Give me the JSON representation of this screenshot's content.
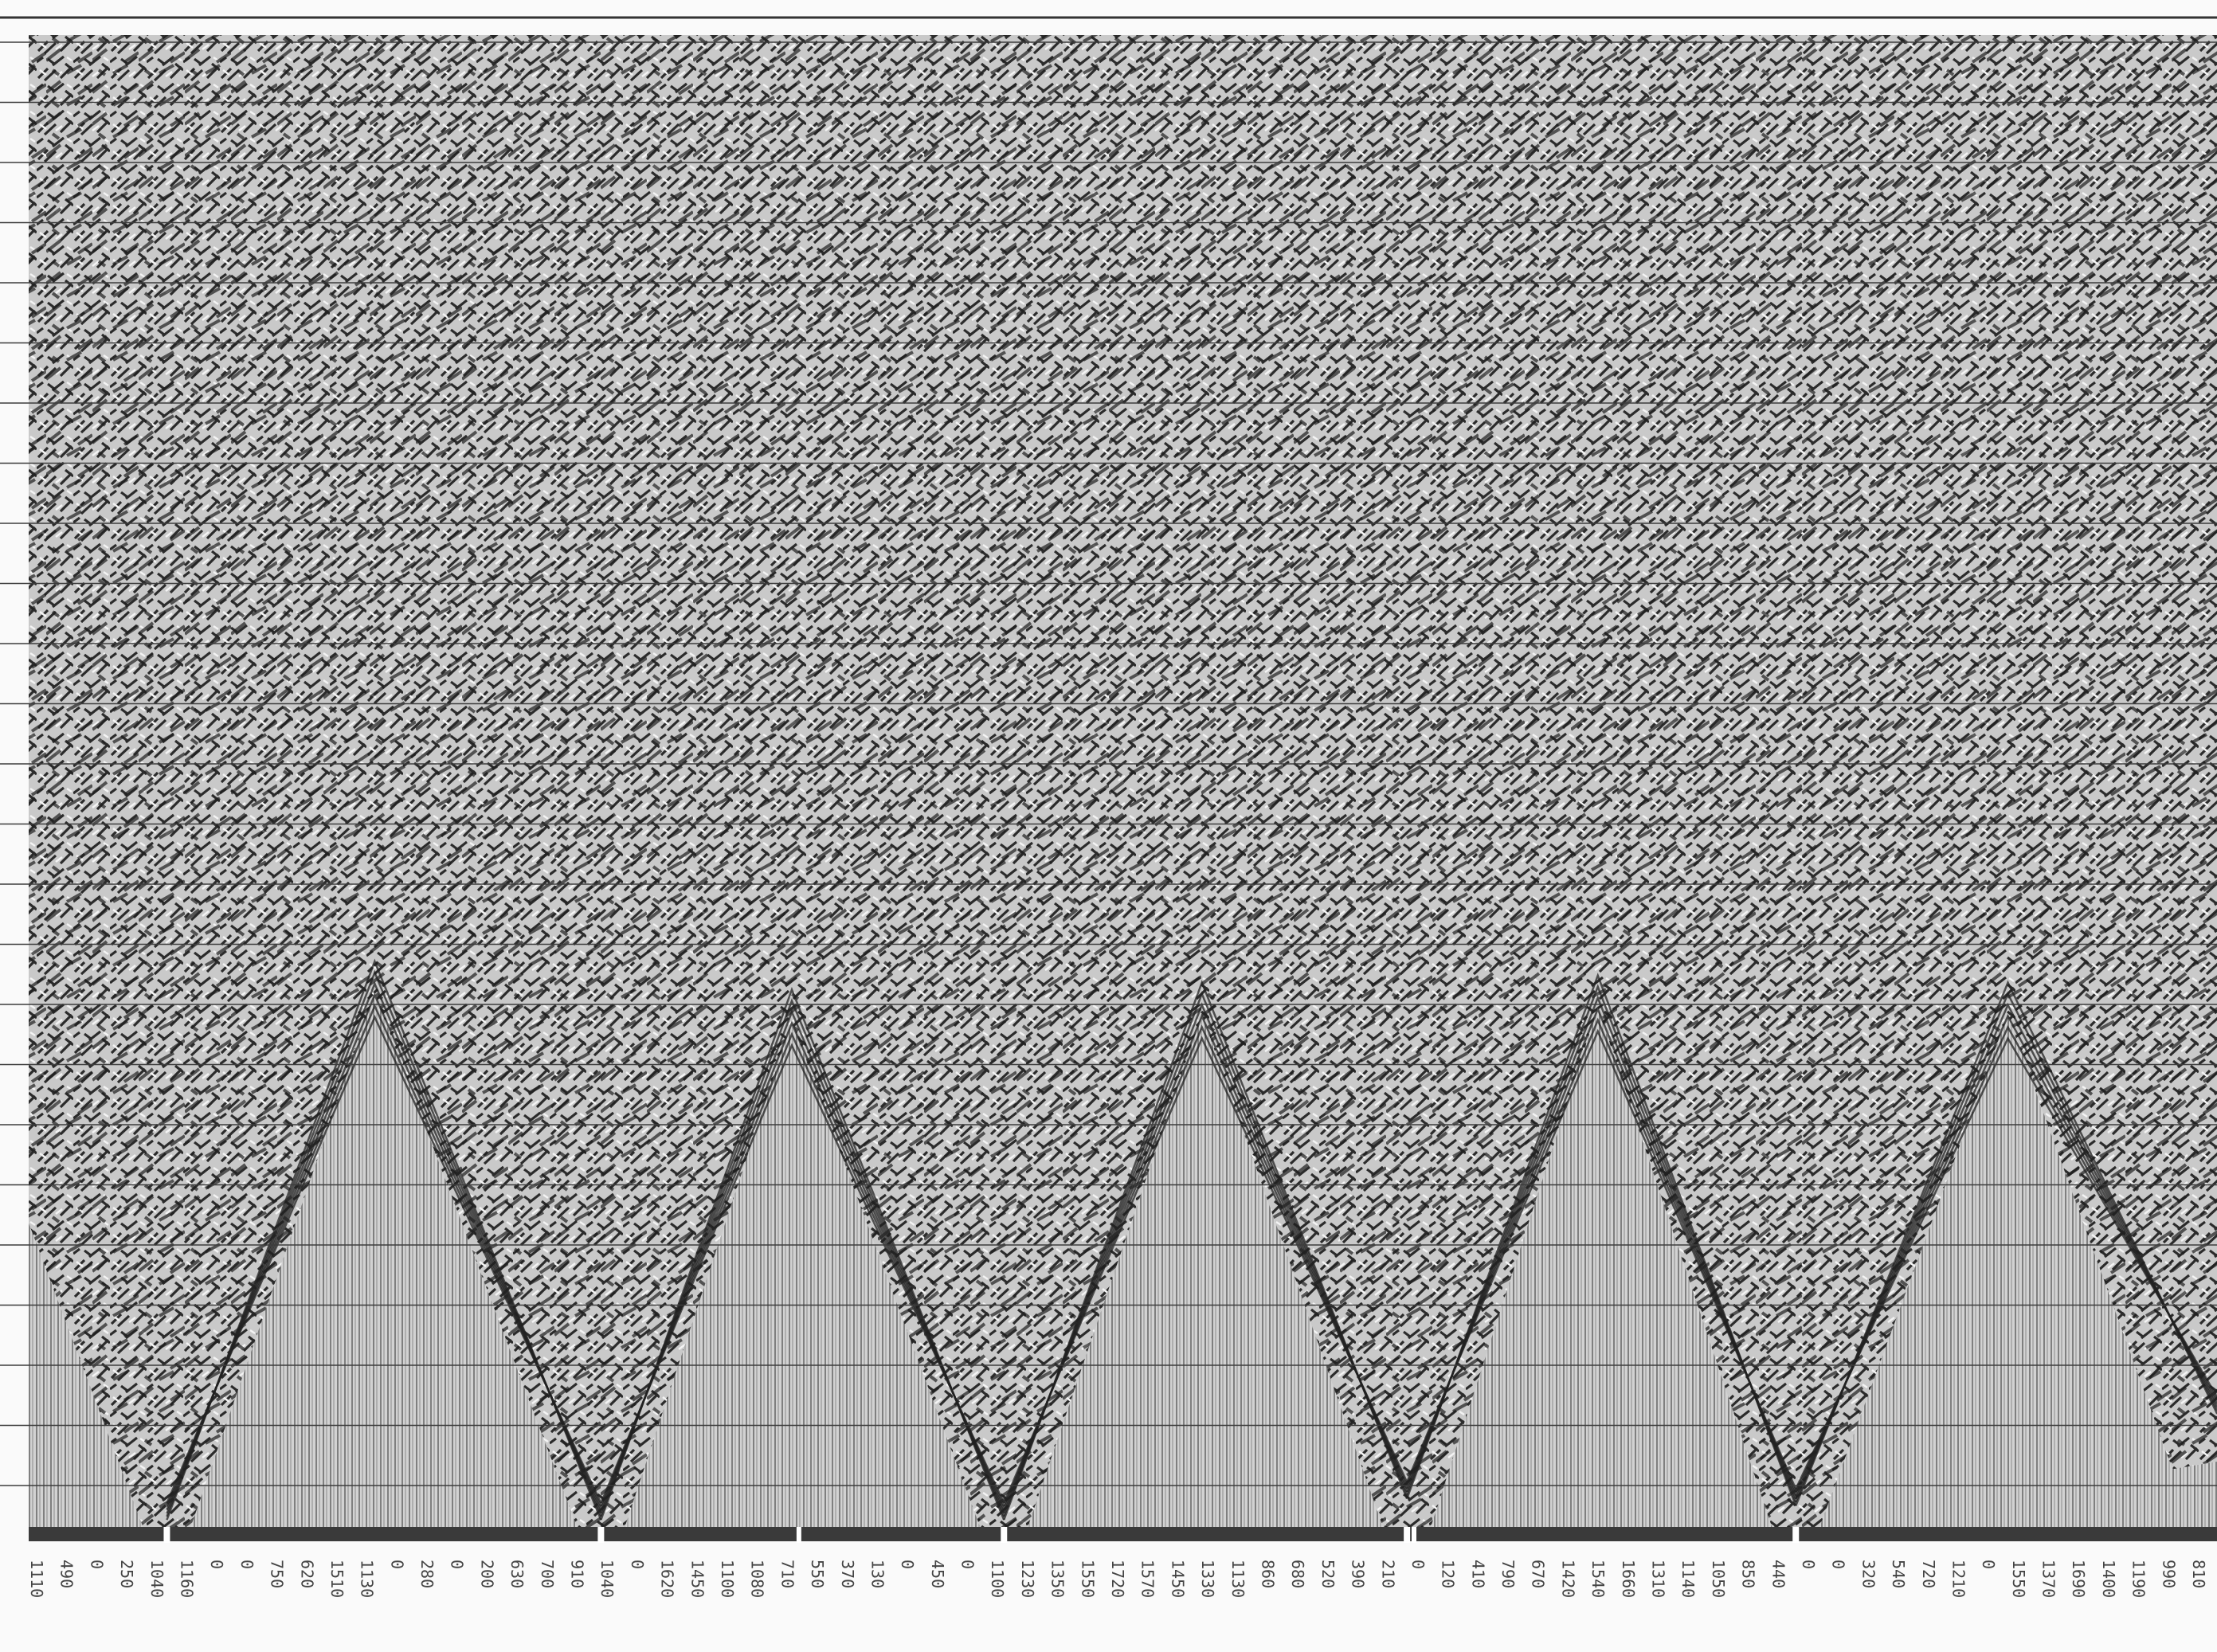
{
  "trace_labels": [
    "1110",
    "490",
    "0",
    "250",
    "1040",
    "1160",
    "0",
    "0",
    "750",
    "620",
    "1510",
    "1130",
    "0",
    "280",
    "0",
    "200",
    "630",
    "700",
    "910",
    "1040",
    "0",
    "1620",
    "1450",
    "1100",
    "1080",
    "710",
    "550",
    "370",
    "130",
    "0",
    "450",
    "0",
    "1100",
    "1230",
    "1350",
    "1550",
    "1720",
    "1570",
    "1450",
    "1330",
    "1130",
    "860",
    "680",
    "520",
    "390",
    "210",
    "0",
    "120",
    "410",
    "790",
    "670",
    "1420",
    "1540",
    "1660",
    "1310",
    "1140",
    "1050",
    "850",
    "440",
    "0",
    "0",
    "320",
    "540",
    "720",
    "1210",
    "0",
    "1550",
    "1370",
    "1690",
    "1400",
    "1190",
    "990",
    "810"
  ]
}
